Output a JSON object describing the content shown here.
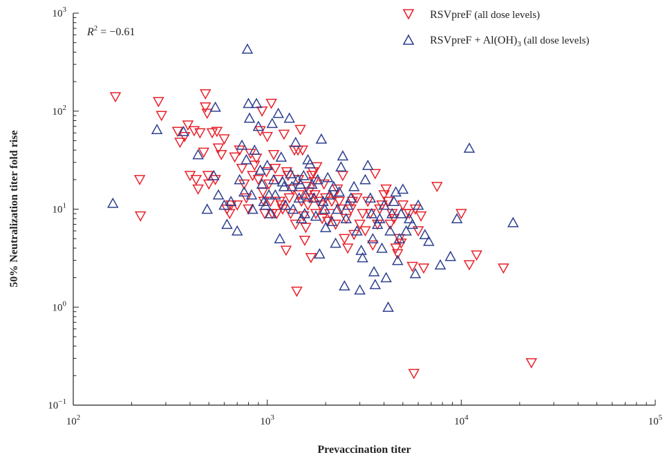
{
  "chart_data": {
    "type": "scatter",
    "title": "",
    "xlabel": "Prevaccination titer",
    "ylabel": "50% Neutralization titer fold rise",
    "xscale": "log",
    "yscale": "log",
    "xlim": [
      100,
      100000
    ],
    "ylim": [
      0.1,
      1000
    ],
    "x_ticks": [
      {
        "value": 100,
        "base": "10",
        "exp": "2"
      },
      {
        "value": 1000,
        "base": "10",
        "exp": "3"
      },
      {
        "value": 10000,
        "base": "10",
        "exp": "4"
      },
      {
        "value": 100000,
        "base": "10",
        "exp": "5"
      }
    ],
    "y_ticks": [
      {
        "value": 0.1,
        "base": "10",
        "exp": "−1"
      },
      {
        "value": 1,
        "base": "10",
        "exp": "0"
      },
      {
        "value": 10,
        "base": "10",
        "exp": "1"
      },
      {
        "value": 100,
        "base": "10",
        "exp": "2"
      },
      {
        "value": 1000,
        "base": "10",
        "exp": "3"
      }
    ],
    "grid": false,
    "legend_position": "top-right",
    "annotation": {
      "symbol": "R",
      "exp": "2",
      "text": " = −0.61"
    },
    "series": [
      {
        "name": "RSVpreF (all dose levels)",
        "label_main": "RSVpreF",
        "label_paren": " (all dose levels)",
        "marker": "triangle-down",
        "color": "#e8202a",
        "points": [
          [
            165,
            140
          ],
          [
            220,
            20
          ],
          [
            222,
            8.5
          ],
          [
            275,
            125
          ],
          [
            285,
            90
          ],
          [
            345,
            62
          ],
          [
            355,
            48
          ],
          [
            375,
            55
          ],
          [
            390,
            72
          ],
          [
            400,
            22
          ],
          [
            420,
            63
          ],
          [
            430,
            20
          ],
          [
            440,
            16
          ],
          [
            450,
            60
          ],
          [
            470,
            38
          ],
          [
            480,
            150
          ],
          [
            480,
            110
          ],
          [
            490,
            95
          ],
          [
            495,
            22
          ],
          [
            500,
            18
          ],
          [
            520,
            60
          ],
          [
            540,
            20
          ],
          [
            550,
            62
          ],
          [
            560,
            42
          ],
          [
            580,
            36
          ],
          [
            600,
            52
          ],
          [
            620,
            10
          ],
          [
            640,
            9
          ],
          [
            650,
            11
          ],
          [
            680,
            34
          ],
          [
            700,
            11
          ],
          [
            720,
            40
          ],
          [
            740,
            26
          ],
          [
            760,
            18
          ],
          [
            780,
            13
          ],
          [
            800,
            10
          ],
          [
            820,
            37
          ],
          [
            840,
            22
          ],
          [
            860,
            28
          ],
          [
            880,
            33
          ],
          [
            900,
            20
          ],
          [
            920,
            63
          ],
          [
            940,
            100
          ],
          [
            950,
            15
          ],
          [
            960,
            12
          ],
          [
            970,
            9
          ],
          [
            990,
            24
          ],
          [
            1000,
            55
          ],
          [
            1020,
            18
          ],
          [
            1040,
            12
          ],
          [
            1050,
            120
          ],
          [
            1060,
            9
          ],
          [
            1080,
            36
          ],
          [
            1100,
            26
          ],
          [
            1120,
            9
          ],
          [
            1140,
            20
          ],
          [
            1160,
            12
          ],
          [
            1180,
            11
          ],
          [
            1200,
            10
          ],
          [
            1220,
            58
          ],
          [
            1250,
            3.8
          ],
          [
            1260,
            24
          ],
          [
            1280,
            22
          ],
          [
            1300,
            13
          ],
          [
            1320,
            9
          ],
          [
            1350,
            16
          ],
          [
            1380,
            40
          ],
          [
            1400,
            7
          ],
          [
            1420,
            1.45
          ],
          [
            1440,
            40
          ],
          [
            1450,
            20
          ],
          [
            1460,
            14
          ],
          [
            1480,
            65
          ],
          [
            1500,
            12
          ],
          [
            1520,
            40
          ],
          [
            1540,
            8.5
          ],
          [
            1560,
            4.8
          ],
          [
            1580,
            6.5
          ],
          [
            1600,
            17
          ],
          [
            1620,
            11
          ],
          [
            1640,
            15
          ],
          [
            1660,
            13
          ],
          [
            1680,
            3.2
          ],
          [
            1700,
            22
          ],
          [
            1720,
            24
          ],
          [
            1740,
            19
          ],
          [
            1760,
            14
          ],
          [
            1780,
            9
          ],
          [
            1800,
            27
          ],
          [
            1840,
            12
          ],
          [
            1880,
            11
          ],
          [
            1920,
            8
          ],
          [
            1960,
            18
          ],
          [
            2000,
            13
          ],
          [
            2050,
            7.5
          ],
          [
            2100,
            9
          ],
          [
            2150,
            12
          ],
          [
            2200,
            14
          ],
          [
            2250,
            7
          ],
          [
            2300,
            16
          ],
          [
            2350,
            12
          ],
          [
            2400,
            10
          ],
          [
            2450,
            22
          ],
          [
            2500,
            5
          ],
          [
            2550,
            8
          ],
          [
            2600,
            4
          ],
          [
            2700,
            10
          ],
          [
            2750,
            12
          ],
          [
            2800,
            5.5
          ],
          [
            2900,
            13
          ],
          [
            3000,
            7
          ],
          [
            3100,
            9
          ],
          [
            3200,
            6
          ],
          [
            3300,
            12
          ],
          [
            3400,
            9
          ],
          [
            3500,
            4.3
          ],
          [
            3600,
            23
          ],
          [
            3700,
            7
          ],
          [
            3800,
            10
          ],
          [
            3900,
            11
          ],
          [
            4000,
            14
          ],
          [
            4100,
            16
          ],
          [
            4200,
            12
          ],
          [
            4300,
            7
          ],
          [
            4400,
            9
          ],
          [
            4500,
            8
          ],
          [
            4600,
            4
          ],
          [
            4700,
            3.5
          ],
          [
            4800,
            5
          ],
          [
            4900,
            4.5
          ],
          [
            5000,
            11
          ],
          [
            5200,
            9
          ],
          [
            5400,
            9
          ],
          [
            5600,
            2.6
          ],
          [
            5700,
            0.21
          ],
          [
            5800,
            10
          ],
          [
            6000,
            6
          ],
          [
            6200,
            8.5
          ],
          [
            6400,
            2.5
          ],
          [
            7500,
            17
          ],
          [
            10000,
            9
          ],
          [
            11000,
            2.7
          ],
          [
            12000,
            3.4
          ],
          [
            16500,
            2.5
          ],
          [
            23000,
            0.27
          ]
        ]
      },
      {
        "name": "RSVpreF + Al(OH)3 (all dose levels)",
        "label_main": "RSVpreF + Al(OH)",
        "label_sub": "3",
        "label_paren": " (all dose levels)",
        "marker": "triangle-up",
        "color": "#2d3f8f",
        "points": [
          [
            160,
            11.5
          ],
          [
            270,
            65
          ],
          [
            370,
            62
          ],
          [
            440,
            36
          ],
          [
            490,
            10
          ],
          [
            530,
            22
          ],
          [
            540,
            110
          ],
          [
            560,
            14
          ],
          [
            600,
            11
          ],
          [
            620,
            7
          ],
          [
            650,
            12
          ],
          [
            700,
            6
          ],
          [
            720,
            20
          ],
          [
            740,
            45
          ],
          [
            760,
            15
          ],
          [
            780,
            32
          ],
          [
            790,
            430
          ],
          [
            800,
            120
          ],
          [
            810,
            85
          ],
          [
            830,
            14
          ],
          [
            840,
            10
          ],
          [
            860,
            40
          ],
          [
            880,
            120
          ],
          [
            900,
            70
          ],
          [
            920,
            25
          ],
          [
            940,
            18
          ],
          [
            960,
            12
          ],
          [
            980,
            11
          ],
          [
            1000,
            28
          ],
          [
            1020,
            14
          ],
          [
            1040,
            9
          ],
          [
            1060,
            75
          ],
          [
            1080,
            20
          ],
          [
            1100,
            14
          ],
          [
            1140,
            95
          ],
          [
            1160,
            5
          ],
          [
            1180,
            34
          ],
          [
            1200,
            19
          ],
          [
            1220,
            17
          ],
          [
            1240,
            11
          ],
          [
            1300,
            85
          ],
          [
            1320,
            23
          ],
          [
            1340,
            17
          ],
          [
            1360,
            10
          ],
          [
            1400,
            48
          ],
          [
            1440,
            20
          ],
          [
            1460,
            13
          ],
          [
            1480,
            18
          ],
          [
            1500,
            8
          ],
          [
            1540,
            22
          ],
          [
            1560,
            9
          ],
          [
            1580,
            14
          ],
          [
            1620,
            32
          ],
          [
            1660,
            29
          ],
          [
            1700,
            18
          ],
          [
            1740,
            13
          ],
          [
            1780,
            8.5
          ],
          [
            1820,
            20
          ],
          [
            1860,
            3.5
          ],
          [
            1900,
            52
          ],
          [
            1940,
            12
          ],
          [
            1980,
            10
          ],
          [
            2000,
            6.5
          ],
          [
            2050,
            21
          ],
          [
            2100,
            14
          ],
          [
            2150,
            7.5
          ],
          [
            2200,
            17
          ],
          [
            2250,
            4.5
          ],
          [
            2300,
            10
          ],
          [
            2350,
            15
          ],
          [
            2400,
            27
          ],
          [
            2450,
            35
          ],
          [
            2500,
            1.65
          ],
          [
            2550,
            8
          ],
          [
            2600,
            11
          ],
          [
            2700,
            13
          ],
          [
            2800,
            17
          ],
          [
            2900,
            6
          ],
          [
            3000,
            1.5
          ],
          [
            3050,
            3.8
          ],
          [
            3100,
            3.2
          ],
          [
            3200,
            20
          ],
          [
            3300,
            28
          ],
          [
            3400,
            13
          ],
          [
            3450,
            9
          ],
          [
            3500,
            5
          ],
          [
            3550,
            2.3
          ],
          [
            3600,
            1.7
          ],
          [
            3700,
            7
          ],
          [
            3800,
            8
          ],
          [
            3900,
            4
          ],
          [
            4000,
            11
          ],
          [
            4100,
            2
          ],
          [
            4200,
            1.0
          ],
          [
            4300,
            6
          ],
          [
            4400,
            9
          ],
          [
            4500,
            12
          ],
          [
            4600,
            15
          ],
          [
            4700,
            3
          ],
          [
            4800,
            5
          ],
          [
            4900,
            9
          ],
          [
            5000,
            16
          ],
          [
            5200,
            6
          ],
          [
            5400,
            8
          ],
          [
            5600,
            7
          ],
          [
            5800,
            2.2
          ],
          [
            6000,
            11
          ],
          [
            6500,
            5.5
          ],
          [
            6800,
            4.7
          ],
          [
            7800,
            2.7
          ],
          [
            8800,
            3.3
          ],
          [
            9500,
            8
          ],
          [
            11000,
            42
          ],
          [
            18500,
            7.3
          ]
        ]
      }
    ]
  }
}
